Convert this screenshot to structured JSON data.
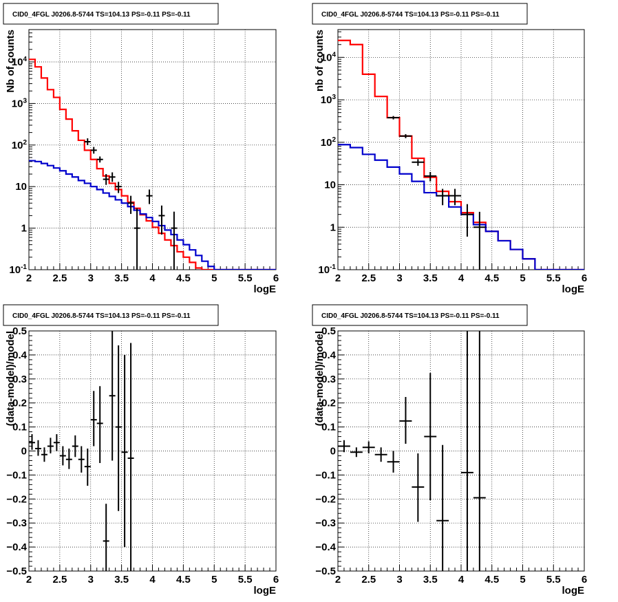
{
  "chart_data": [
    {
      "type": "line",
      "title": "CID0_4FGL J0206.8-5744 TS=104.13 PS=-0.11 PS=-0.11",
      "xlabel": "logE",
      "ylabel": "Nb of counts",
      "xlim": [
        2,
        6
      ],
      "ylim": [
        0.1,
        60000
      ],
      "yscale": "log",
      "grid": true,
      "xticks": [
        2,
        2.5,
        3,
        3.5,
        4,
        4.5,
        5,
        5.5,
        6
      ],
      "xtick_labels": [
        "2",
        "2.5",
        "3",
        "3.5",
        "4",
        "4.5",
        "5",
        "5.5",
        "6"
      ],
      "yticks": [
        0.1,
        1,
        10,
        100,
        1000,
        10000
      ],
      "ytick_labels": [
        "10⁻¹",
        "1",
        "10",
        "10²",
        "10³",
        "10⁴"
      ],
      "bin_edges": [
        2.0,
        2.1,
        2.2,
        2.3,
        2.4,
        2.5,
        2.6,
        2.7,
        2.8,
        2.9,
        3.0,
        3.1,
        3.2,
        3.3,
        3.4,
        3.5,
        3.6,
        3.7,
        3.8,
        3.9,
        4.0,
        4.1,
        4.2,
        4.3,
        4.4,
        4.5,
        4.6,
        4.7,
        4.8,
        4.9,
        5.0,
        5.1,
        5.2,
        5.3,
        5.4,
        5.5,
        5.6,
        5.7,
        5.8,
        5.9,
        6.0
      ],
      "series": [
        {
          "color": "#ff0000",
          "step_values": [
            11500,
            7600,
            4100,
            2150,
            1400,
            720,
            420,
            220,
            130,
            75,
            45,
            27,
            18,
            12,
            8.5,
            6,
            4.2,
            3.0,
            2.1,
            1.5,
            1.05,
            0.75,
            0.52,
            0.38,
            0.27,
            0.2,
            0.15,
            0.11,
            0.1,
            0.1,
            0.1,
            0.1,
            0.1,
            0.1,
            0.1,
            0.1,
            0.1,
            0.1,
            0.1,
            0.1
          ]
        },
        {
          "color": "#0000cc",
          "step_values": [
            42,
            40,
            36,
            32,
            28,
            24,
            20,
            17,
            14,
            12,
            10,
            8.5,
            7.0,
            5.8,
            4.8,
            4.0,
            3.3,
            2.7,
            2.2,
            1.8,
            1.45,
            1.15,
            0.9,
            0.7,
            0.52,
            0.4,
            0.3,
            0.22,
            0.16,
            0.12,
            0.1,
            0.1,
            0.1,
            0.1,
            0.1,
            0.1,
            0.1,
            0.1,
            0.1,
            0.1
          ]
        },
        {
          "color": "#000000",
          "kind": "errorbar",
          "points": [
            {
              "x": 2.95,
              "y": 120,
              "lo": 100,
              "hi": 145
            },
            {
              "x": 3.05,
              "y": 75,
              "lo": 62,
              "hi": 90
            },
            {
              "x": 3.15,
              "y": 45,
              "lo": 38,
              "hi": 53
            },
            {
              "x": 3.25,
              "y": 15,
              "lo": 11,
              "hi": 20
            },
            {
              "x": 3.35,
              "y": 17,
              "lo": 13,
              "hi": 22
            },
            {
              "x": 3.45,
              "y": 10,
              "lo": 7,
              "hi": 13
            },
            {
              "x": 3.65,
              "y": 4,
              "lo": 2.2,
              "hi": 6
            },
            {
              "x": 3.75,
              "y": 1,
              "lo": 0.1,
              "hi": 3
            },
            {
              "x": 3.95,
              "y": 6,
              "lo": 3.8,
              "hi": 8.5
            },
            {
              "x": 4.15,
              "y": 2,
              "lo": 0.7,
              "hi": 3.5
            },
            {
              "x": 4.35,
              "y": 1,
              "lo": 0.1,
              "hi": 2.5
            }
          ]
        }
      ]
    },
    {
      "type": "line",
      "title": "CID0_4FGL J0206.8-5744 TS=104.13 PS=-0.11 PS=-0.11",
      "xlabel": "logE",
      "ylabel": "nb of counts",
      "xlim": [
        2,
        6
      ],
      "ylim": [
        0.1,
        45000
      ],
      "yscale": "log",
      "grid": true,
      "xticks": [
        2,
        2.5,
        3,
        3.5,
        4,
        4.5,
        5,
        5.5,
        6
      ],
      "xtick_labels": [
        "2",
        "2.5",
        "3",
        "3.5",
        "4",
        "4.5",
        "5",
        "5.5",
        "6"
      ],
      "yticks": [
        0.1,
        1,
        10,
        100,
        1000,
        10000
      ],
      "ytick_labels": [
        "10⁻¹",
        "1",
        "10",
        "10²",
        "10³",
        "10⁴"
      ],
      "bin_edges": [
        2.0,
        2.2,
        2.4,
        2.6,
        2.8,
        3.0,
        3.2,
        3.4,
        3.6,
        3.8,
        4.0,
        4.2,
        4.4,
        4.6,
        4.8,
        5.0,
        5.2,
        5.4,
        5.6,
        5.8,
        6.0
      ],
      "series": [
        {
          "color": "#ff0000",
          "step_values": [
            25000,
            20000,
            4000,
            1200,
            380,
            140,
            42,
            15,
            7,
            4,
            2.2,
            1.3,
            0.8,
            0.48,
            0.3,
            0.18,
            0.1,
            0.1,
            0.1,
            0.1
          ]
        },
        {
          "color": "#0000cc",
          "step_values": [
            88,
            75,
            52,
            38,
            26,
            18,
            12,
            6.5,
            5.5,
            3.0,
            2.0,
            1.15,
            0.8,
            0.48,
            0.3,
            0.18,
            0.1,
            0.1,
            0.1,
            0.1
          ]
        },
        {
          "color": "#000000",
          "kind": "errorbar",
          "points": [
            {
              "x": 2.9,
              "y": 380,
              "lo": 345,
              "hi": 415
            },
            {
              "x": 3.1,
              "y": 140,
              "lo": 125,
              "hi": 155
            },
            {
              "x": 3.3,
              "y": 34,
              "lo": 28,
              "hi": 40
            },
            {
              "x": 3.5,
              "y": 16,
              "lo": 12,
              "hi": 20
            },
            {
              "x": 3.7,
              "y": 5.5,
              "lo": 3.3,
              "hi": 8
            },
            {
              "x": 3.9,
              "y": 5.5,
              "lo": 3.3,
              "hi": 8
            },
            {
              "x": 4.1,
              "y": 2,
              "lo": 0.6,
              "hi": 3.5
            },
            {
              "x": 4.3,
              "y": 1,
              "lo": 0.1,
              "hi": 2.3
            }
          ]
        }
      ]
    },
    {
      "type": "scatter",
      "title": "CID0_4FGL J0206.8-5744 TS=104.13 PS=-0.11 PS=-0.11",
      "xlabel": "logE",
      "ylabel": "(data-model)/model",
      "xlim": [
        2,
        6
      ],
      "ylim": [
        -0.5,
        0.5
      ],
      "grid": true,
      "xticks": [
        2,
        2.5,
        3,
        3.5,
        4,
        4.5,
        5,
        5.5,
        6
      ],
      "xtick_labels": [
        "2",
        "2.5",
        "3",
        "3.5",
        "4",
        "4.5",
        "5",
        "5.5",
        "6"
      ],
      "yticks": [
        -0.5,
        -0.4,
        -0.3,
        -0.2,
        -0.1,
        0,
        0.1,
        0.2,
        0.3,
        0.4,
        0.5
      ],
      "ytick_labels": [
        "−0.5",
        "−0.4",
        "−0.3",
        "−0.2",
        "−0.1",
        "0",
        "0.1",
        "0.2",
        "0.3",
        "0.4",
        "0.5"
      ],
      "series": [
        {
          "color": "#000000",
          "kind": "errorbar",
          "xerr": 0.05,
          "points": [
            {
              "x": 2.05,
              "y": 0.035,
              "lo": 0.005,
              "hi": 0.07
            },
            {
              "x": 2.15,
              "y": 0.01,
              "lo": -0.02,
              "hi": 0.045
            },
            {
              "x": 2.25,
              "y": -0.015,
              "lo": -0.045,
              "hi": 0.015
            },
            {
              "x": 2.35,
              "y": 0.02,
              "lo": -0.01,
              "hi": 0.055
            },
            {
              "x": 2.45,
              "y": 0.035,
              "lo": 0.0,
              "hi": 0.07
            },
            {
              "x": 2.55,
              "y": -0.02,
              "lo": -0.06,
              "hi": 0.02
            },
            {
              "x": 2.65,
              "y": -0.035,
              "lo": -0.075,
              "hi": 0.01
            },
            {
              "x": 2.75,
              "y": 0.02,
              "lo": -0.025,
              "hi": 0.065
            },
            {
              "x": 2.85,
              "y": -0.035,
              "lo": -0.09,
              "hi": 0.02
            },
            {
              "x": 2.95,
              "y": -0.065,
              "lo": -0.145,
              "hi": 0.01
            },
            {
              "x": 3.05,
              "y": 0.13,
              "lo": 0.02,
              "hi": 0.25
            },
            {
              "x": 3.15,
              "y": 0.115,
              "lo": -0.05,
              "hi": 0.27
            },
            {
              "x": 3.25,
              "y": -0.375,
              "lo": -0.5,
              "hi": -0.22
            },
            {
              "x": 3.35,
              "y": 0.23,
              "lo": -0.04,
              "hi": 0.5
            },
            {
              "x": 3.45,
              "y": 0.1,
              "lo": -0.25,
              "hi": 0.44
            },
            {
              "x": 3.55,
              "y": -0.005,
              "lo": -0.4,
              "hi": 0.4
            },
            {
              "x": 3.65,
              "y": -0.03,
              "lo": -0.5,
              "hi": 0.45
            }
          ]
        }
      ]
    },
    {
      "type": "scatter",
      "title": "CID0_4FGL J0206.8-5744 TS=104.13 PS=-0.11 PS=-0.11",
      "xlabel": "logE",
      "ylabel": "(data-model)/model",
      "xlim": [
        2,
        6
      ],
      "ylim": [
        -0.5,
        0.5
      ],
      "grid": true,
      "xticks": [
        2,
        2.5,
        3,
        3.5,
        4,
        4.5,
        5,
        5.5,
        6
      ],
      "xtick_labels": [
        "2",
        "2.5",
        "3",
        "3.5",
        "4",
        "4.5",
        "5",
        "5.5",
        "6"
      ],
      "yticks": [
        -0.5,
        -0.4,
        -0.3,
        -0.2,
        -0.1,
        0,
        0.1,
        0.2,
        0.3,
        0.4,
        0.5
      ],
      "ytick_labels": [
        "−0.5",
        "−0.4",
        "−0.3",
        "−0.2",
        "−0.1",
        "0",
        "0.1",
        "0.2",
        "0.3",
        "0.4",
        "0.5"
      ],
      "series": [
        {
          "color": "#000000",
          "kind": "errorbar",
          "xerr": 0.1,
          "points": [
            {
              "x": 2.1,
              "y": 0.02,
              "lo": -0.005,
              "hi": 0.045
            },
            {
              "x": 2.3,
              "y": -0.005,
              "lo": -0.025,
              "hi": 0.015
            },
            {
              "x": 2.5,
              "y": 0.015,
              "lo": -0.01,
              "hi": 0.04
            },
            {
              "x": 2.7,
              "y": -0.015,
              "lo": -0.045,
              "hi": 0.015
            },
            {
              "x": 2.9,
              "y": -0.045,
              "lo": -0.09,
              "hi": 0.0
            },
            {
              "x": 3.1,
              "y": 0.125,
              "lo": 0.03,
              "hi": 0.225
            },
            {
              "x": 3.3,
              "y": -0.15,
              "lo": -0.295,
              "hi": -0.01
            },
            {
              "x": 3.5,
              "y": 0.06,
              "lo": -0.205,
              "hi": 0.325
            },
            {
              "x": 3.7,
              "y": -0.29,
              "lo": -0.5,
              "hi": 0.025
            },
            {
              "x": 4.1,
              "y": -0.09,
              "lo": -0.5,
              "hi": 0.5
            },
            {
              "x": 4.3,
              "y": -0.195,
              "lo": -0.5,
              "hi": 0.5
            }
          ]
        }
      ]
    }
  ]
}
